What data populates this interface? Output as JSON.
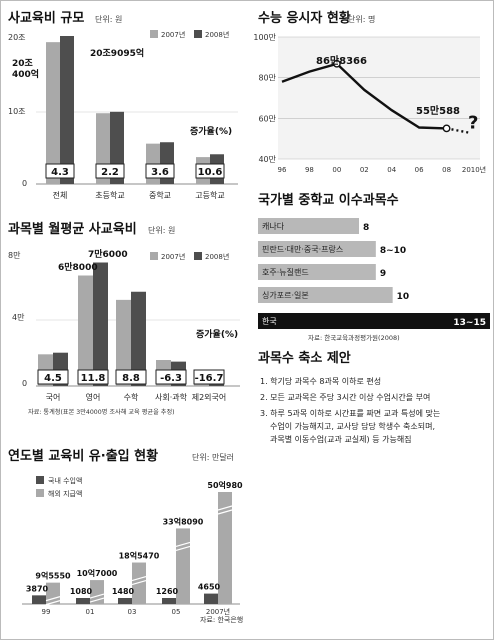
{
  "chart_data": [
    {
      "type": "bar",
      "title": "사교육비 규모",
      "unit": "단위: 원",
      "y_ticks": [
        "20조",
        "10조",
        "0"
      ],
      "ylim": [
        0,
        20.9095
      ],
      "categories": [
        "전체",
        "초등학교",
        "중학교",
        "고등학교"
      ],
      "series": [
        {
          "name": "2007년",
          "values": [
            20.04,
            10.0,
            5.7,
            3.8
          ]
        },
        {
          "name": "2008년",
          "values": [
            20.9095,
            10.2,
            5.9,
            4.2
          ]
        }
      ],
      "annotations": {
        "left_value": "20조 400억",
        "right_value": "20조9095억"
      },
      "growth_label": "증가율(%)",
      "growth_values": [
        "4.3",
        "2.2",
        "3.6",
        "10.6"
      ]
    },
    {
      "type": "bar",
      "title": "과목별 월평균 사교육비",
      "unit": "단위: 원",
      "y_ticks": [
        "8만",
        "4만",
        "0"
      ],
      "ylim": [
        0,
        8
      ],
      "categories": [
        "국어",
        "영어",
        "수학",
        "사회·과학",
        "제2외국어"
      ],
      "series": [
        {
          "name": "2007년",
          "values": [
            1.95,
            6.8,
            5.3,
            1.6,
            0.65
          ]
        },
        {
          "name": "2008년",
          "values": [
            2.05,
            7.6,
            5.8,
            1.5,
            0.55
          ]
        }
      ],
      "annotations": {
        "english_2007": "6만8000",
        "english_2008": "7만6000"
      },
      "growth_label": "증가율(%)",
      "growth_values": [
        "4.5",
        "11.8",
        "8.8",
        "-6.3",
        "-16.7"
      ],
      "source": "자료: 통계청(표본 3만4000명 조사해 교육 평균을 추정)"
    },
    {
      "type": "line",
      "title": "수능 응시자 현황",
      "unit": "단위: 명",
      "x": [
        "96",
        "98",
        "00",
        "02",
        "04",
        "06",
        "08",
        "2010년"
      ],
      "x_values": [
        1996,
        1998,
        2000,
        2002,
        2004,
        2006,
        2008,
        2010
      ],
      "y_ticks": [
        "100만",
        "80만",
        "60만",
        "40만"
      ],
      "ylim": [
        40,
        100
      ],
      "points": [
        {
          "x": 1996,
          "y": 78
        },
        {
          "x": 1998,
          "y": 83
        },
        {
          "x": 2000,
          "y": 86.8366
        },
        {
          "x": 2002,
          "y": 74
        },
        {
          "x": 2004,
          "y": 64
        },
        {
          "x": 2006,
          "y": 55.5
        },
        {
          "x": 2008,
          "y": 55.0588
        }
      ],
      "projection": {
        "x": 2010,
        "y": 53,
        "label": "?"
      },
      "point_labels": [
        {
          "x": 2000,
          "y": 86.8366,
          "text": "86만8366"
        },
        {
          "x": 2008,
          "y": 55.0588,
          "text": "55만588"
        }
      ]
    },
    {
      "type": "bar",
      "title": "국가별 중학교 이수과목수",
      "categories": [
        "캐나다",
        "핀란드·대만·중국·프랑스",
        "호주·뉴질랜드",
        "싱가포르·일본",
        "한국"
      ],
      "values": [
        8,
        9,
        9,
        10,
        14
      ],
      "value_labels": [
        "8",
        "8~10",
        "9",
        "10",
        "13~15"
      ],
      "xlim": [
        0,
        14
      ],
      "source": "자료: 한국교육과정평가원(2008)"
    },
    {
      "type": "bar",
      "title": "연도별 교육비 유·출입 현황",
      "unit": "단위: 만달러",
      "categories": [
        "99",
        "01",
        "03",
        "05",
        "2007년"
      ],
      "series": [
        {
          "name": "국내 수입액",
          "values": [
            3870,
            1080,
            1480,
            1260,
            4650
          ]
        },
        {
          "name": "해외 지급액",
          "values": [
            95550,
            107000,
            185470,
            338090,
            500980
          ]
        }
      ],
      "value_labels_income": [
        "3870",
        "1080",
        "1480",
        "1260",
        "4650"
      ],
      "value_labels_outgo": [
        "9억5550",
        "10억7000",
        "18억5470",
        "33억8090",
        "50억980"
      ],
      "source": "자료: 한국은행"
    }
  ],
  "policy": {
    "title": "과목수 축소 제안",
    "items": [
      "1. 학기당 과목수 8과목 이하로 편성",
      "2. 모든 교과목은 주당 3시간 이상 수업시간을 부여",
      "3. 하루 5과목 이하로 시간표를 짜면 교과 특성에 맞는",
      "수업이 가능해지고, 교사당 담당 학생수 축소되며,",
      "과목별 이동수업(교과 교실제) 등 가능해짐"
    ]
  },
  "colors": {
    "y2007": "#a9a9a9",
    "y2008": "#4e4e4e",
    "dark": "#222222",
    "korea": "#111111"
  }
}
